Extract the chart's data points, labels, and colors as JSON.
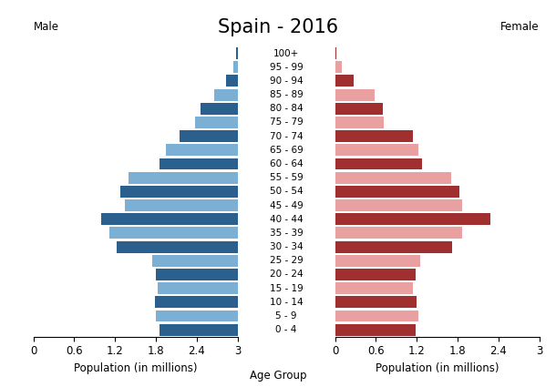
{
  "title": "Spain - 2016",
  "xlabel_left": "Population (in millions)",
  "xlabel_center": "Age Group",
  "xlabel_right": "Population (in millions)",
  "label_male": "Male",
  "label_female": "Female",
  "age_groups": [
    "0 - 4",
    "5 - 9",
    "10 - 14",
    "15 - 19",
    "20 - 24",
    "25 - 29",
    "30 - 34",
    "35 - 39",
    "40 - 44",
    "45 - 49",
    "50 - 54",
    "55 - 59",
    "60 - 64",
    "65 - 69",
    "70 - 74",
    "75 - 79",
    "80 - 84",
    "85 - 89",
    "90 - 94",
    "95 - 99",
    "100+"
  ],
  "male_values": [
    1.15,
    1.2,
    1.22,
    1.18,
    1.2,
    1.25,
    1.78,
    1.88,
    2.0,
    1.65,
    1.73,
    1.6,
    1.15,
    1.05,
    0.85,
    0.62,
    0.55,
    0.35,
    0.17,
    0.06,
    0.02
  ],
  "female_values": [
    1.18,
    1.23,
    1.2,
    1.15,
    1.18,
    1.25,
    1.72,
    1.87,
    2.28,
    1.87,
    1.82,
    1.7,
    1.28,
    1.22,
    1.15,
    0.72,
    0.7,
    0.58,
    0.28,
    0.1,
    0.02
  ],
  "male_dark": "#2b5f8e",
  "male_light": "#7bafd4",
  "female_dark": "#a03030",
  "female_light": "#e8a0a0",
  "xlim": 3.0,
  "xticks": [
    0,
    0.6,
    1.2,
    1.8,
    2.4,
    3.0
  ],
  "title_fontsize": 15,
  "tick_fontsize": 8.5,
  "label_fontsize": 8.5,
  "age_label_fontsize": 7.5
}
